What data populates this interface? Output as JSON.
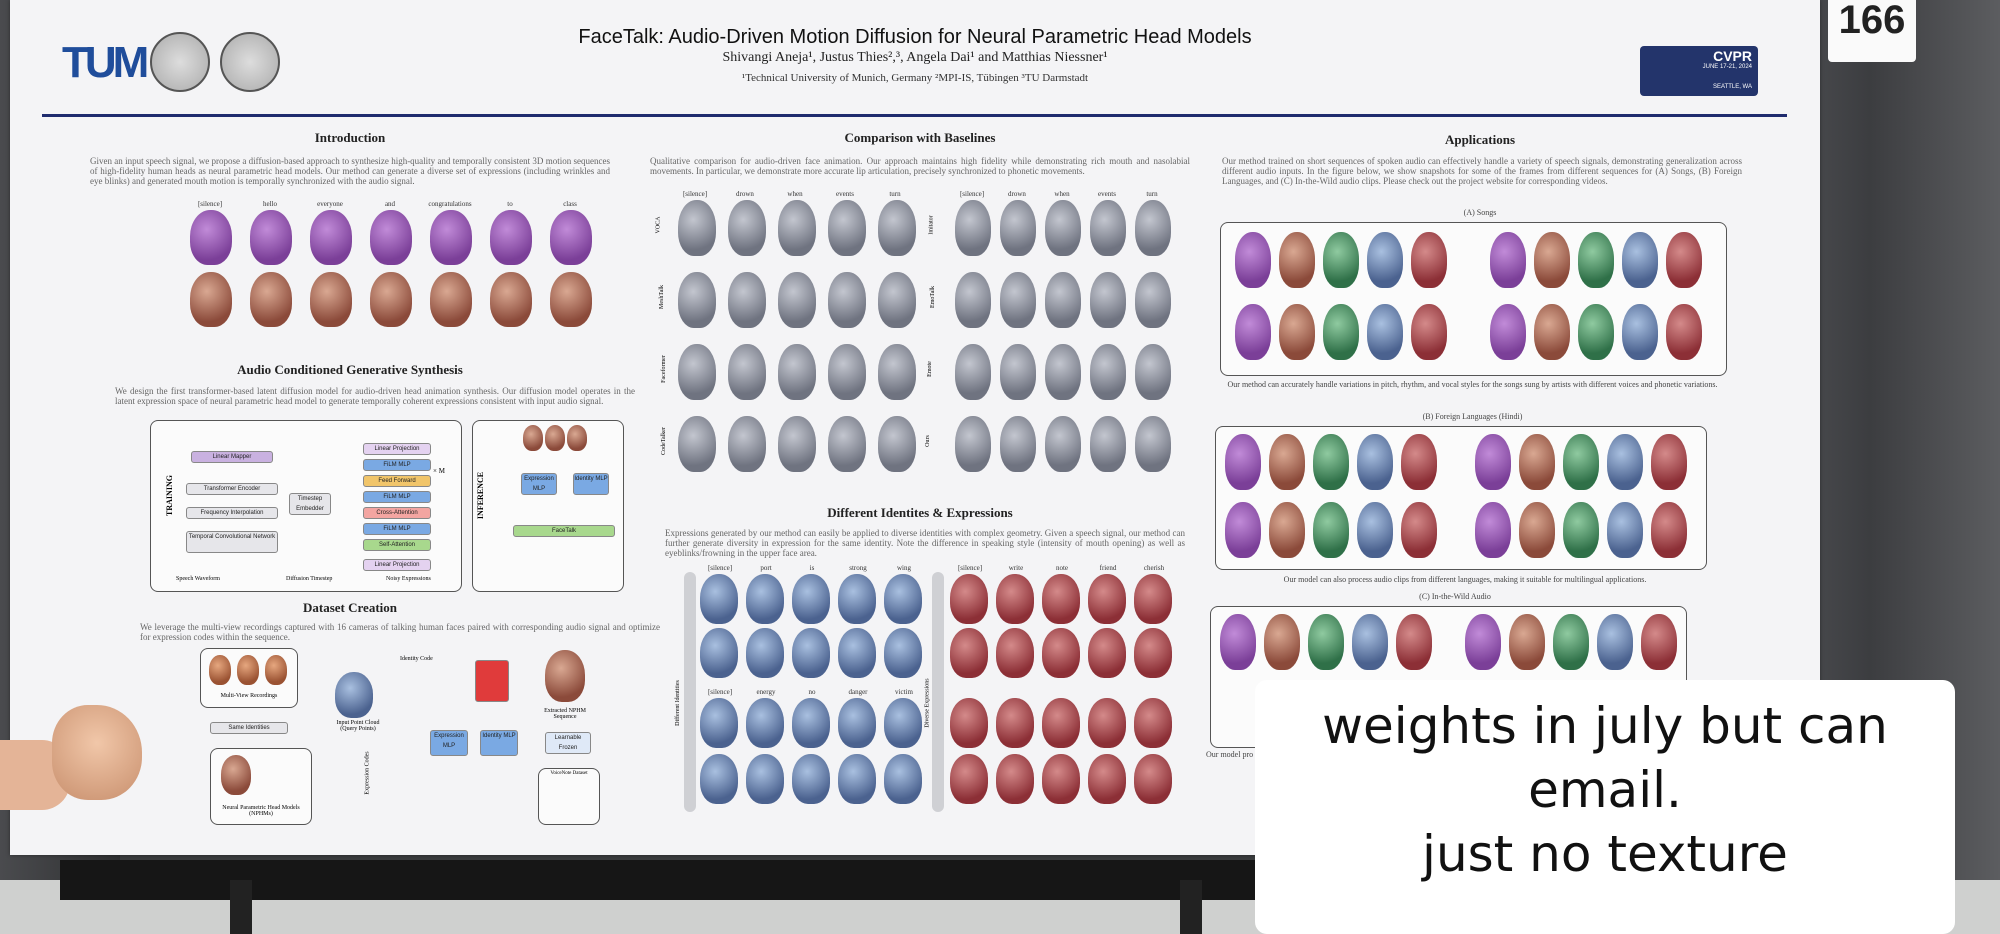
{
  "poster": {
    "title": "FaceTalk: Audio-Driven Motion Diffusion for Neural Parametric Head Models",
    "authors": "Shivangi Aneja¹, Justus Thies²,³, Angela Dai¹ and Matthias Niessner¹",
    "affiliations": "¹Technical University of Munich, Germany   ²MPI-IS, Tübingen   ³TU Darmstadt",
    "booth_number": "166",
    "cvpr_logo": "CVPR",
    "cvpr_date": "JUNE 17-21, 2024",
    "cvpr_city": "SEATTLE, WA",
    "tum_logo": "TUM"
  },
  "sections": {
    "introduction": {
      "title": "Introduction",
      "text": "Given an input speech signal, we propose a diffusion-based approach to synthesize high-quality and temporally consistent 3D motion sequences of high-fidelity human heads as neural parametric head models. Our method can generate a diverse set of expressions (including wrinkles and eye blinks) and generated mouth motion is temporally synchronized with the audio signal.",
      "words": [
        "[silence]",
        "hello",
        "everyone",
        "and",
        "congratulations",
        "to",
        "class"
      ]
    },
    "audio_conditioned": {
      "title": "Audio Conditioned Generative Synthesis",
      "text": "We design the first transformer-based latent diffusion model for audio-driven head animation synthesis. Our diffusion model operates in the latent expression space of neural parametric head model to generate temporally coherent expressions consistent with input audio signal.",
      "training_label": "TRAINING",
      "inference_label": "INFERENCE",
      "blocks": [
        "Linear Mapper",
        "Transformer Encoder",
        "Frequency Interpolation",
        "Temporal Convolutional Network",
        "Linear Projection",
        "FiLM MLP",
        "Feed Forward",
        "FiLM MLP",
        "Cross-Attention",
        "FiLM MLP",
        "Self-Attention",
        "Linear Projection",
        "Timestep Embedder"
      ],
      "inference_blocks": [
        "Expression MLP",
        "Identity MLP",
        "FaceTalk"
      ],
      "footer_labels": [
        "Speech Waveform",
        "Diffusion Timestep",
        "Noisy Expressions"
      ],
      "repeat": "× M"
    },
    "dataset": {
      "title": "Dataset Creation",
      "text": "We leverage the multi-view recordings captured with 16 cameras of talking human faces paired with corresponding audio signal and optimize for expression codes within the sequence.",
      "labels": [
        "Multi-View Recordings",
        "Same Identities",
        "Neural Parametric Head Models (NPHMs)",
        "Input Point Cloud (Query Points)",
        "Identity Code",
        "Expression MLP",
        "Identity MLP",
        "Extracted NPHM Sequence",
        "Learnable Frozen",
        "VoiceNote Dataset",
        "Expression Codes"
      ]
    },
    "comparison": {
      "title": "Comparison with Baselines",
      "text": "Qualitative comparison for audio-driven face animation. Our approach maintains high fidelity while demonstrating rich mouth and nasolabial movements. In particular, we demonstrate more accurate lip articulation, precisely synchronized to phonetic movements.",
      "words": [
        "[silence]",
        "drown",
        "when",
        "events",
        "turn"
      ],
      "rows_left": [
        "VOCA",
        "MeshTalk",
        "Faceformer",
        "CodeTalker"
      ],
      "rows_right": [
        "Imitator",
        "EmoTalk",
        "Emote",
        "Ours"
      ]
    },
    "identities": {
      "title": "Different Identites & Expressions",
      "text": "Expressions generated by our method can easily be applied to diverse identities with complex geometry. Given a speech signal, our method can further generate diversity in expression for the same identity. Note the difference in speaking style (intensity of mouth opening) as well as eyeblinks/frowning in the upper face area.",
      "words_top_left": [
        "[silence]",
        "port",
        "is",
        "strong",
        "wing"
      ],
      "words_top_right": [
        "[silence]",
        "write",
        "note",
        "friend",
        "cherish"
      ],
      "words_bottom_left": [
        "[silence]",
        "energy",
        "no",
        "danger",
        "victim"
      ],
      "side_left": "Different Identities",
      "side_right": "Diverse Expressions"
    },
    "applications": {
      "title": "Applications",
      "text": "Our method trained on short sequences of spoken audio can effectively handle a variety of speech signals, demonstrating generalization across different audio inputs. In the figure below, we show snapshots for some of the frames from different sequences for (A) Songs, (B) Foreign Languages, and (C) In-the-Wild audio clips. Please check out the project website for corresponding videos.",
      "songs_title": "(A) Songs",
      "songs_caption": "Our method can accurately handle variations in pitch, rhythm, and vocal styles for the songs sung by artists with different voices and phonetic variations.",
      "foreign_title": "(B) Foreign Languages (Hindi)",
      "foreign_caption": "Our model can also process audio clips from different languages, making it suitable for multilingual applications.",
      "wild_title": "(C) In-the-Wild Audio",
      "wild_caption": "Our model pro"
    }
  },
  "overlay": {
    "line1": "weights in july but can",
    "line2": "email.",
    "line3": "just no texture"
  }
}
